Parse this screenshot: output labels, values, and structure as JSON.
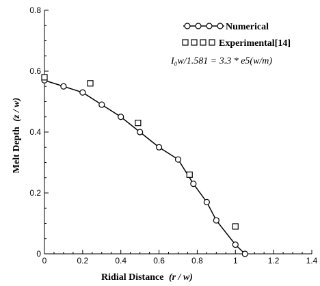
{
  "chart_data": {
    "type": "line",
    "xlabel": "Ridial Distance",
    "xlabel_var": "(r / w)",
    "ylabel": "Melt Depth",
    "ylabel_var": "(z / w)",
    "xlim": [
      0,
      1.4
    ],
    "ylim": [
      0,
      0.8
    ],
    "xticks": [
      "0",
      "0.2",
      "0.4",
      "0.6",
      "0.8",
      "1",
      "1.2",
      "1.4"
    ],
    "yticks": [
      "0",
      "0.2",
      "0.4",
      "0.6",
      "0.8"
    ],
    "xtick_values": [
      0,
      0.2,
      0.4,
      0.6,
      0.8,
      1.0,
      1.2,
      1.4
    ],
    "ytick_values": [
      0,
      0.2,
      0.4,
      0.6,
      0.8
    ],
    "grid": false,
    "legend_position": "top-right",
    "series": [
      {
        "name": "Numerical",
        "marker": "circle",
        "line": true,
        "points": [
          [
            0.0,
            0.57
          ],
          [
            0.1,
            0.55
          ],
          [
            0.2,
            0.53
          ],
          [
            0.3,
            0.49
          ],
          [
            0.4,
            0.45
          ],
          [
            0.5,
            0.4
          ],
          [
            0.6,
            0.35
          ],
          [
            0.7,
            0.31
          ],
          [
            0.78,
            0.23
          ],
          [
            0.85,
            0.17
          ],
          [
            0.9,
            0.11
          ],
          [
            1.0,
            0.03
          ],
          [
            1.05,
            0.0
          ]
        ]
      },
      {
        "name": "Experimental[14]",
        "marker": "square",
        "line": false,
        "points": [
          [
            0.0,
            0.58
          ],
          [
            0.24,
            0.56
          ],
          [
            0.49,
            0.43
          ],
          [
            0.76,
            0.26
          ],
          [
            1.0,
            0.09
          ]
        ]
      }
    ],
    "annotation": "I₀w/1.581 = 3.3 * e5(w/m)"
  },
  "legend": {
    "numerical_label": "Numerical",
    "experimental_label": "Experimental[14]"
  },
  "colors": {
    "line": "#000000",
    "background": "#ffffff"
  }
}
